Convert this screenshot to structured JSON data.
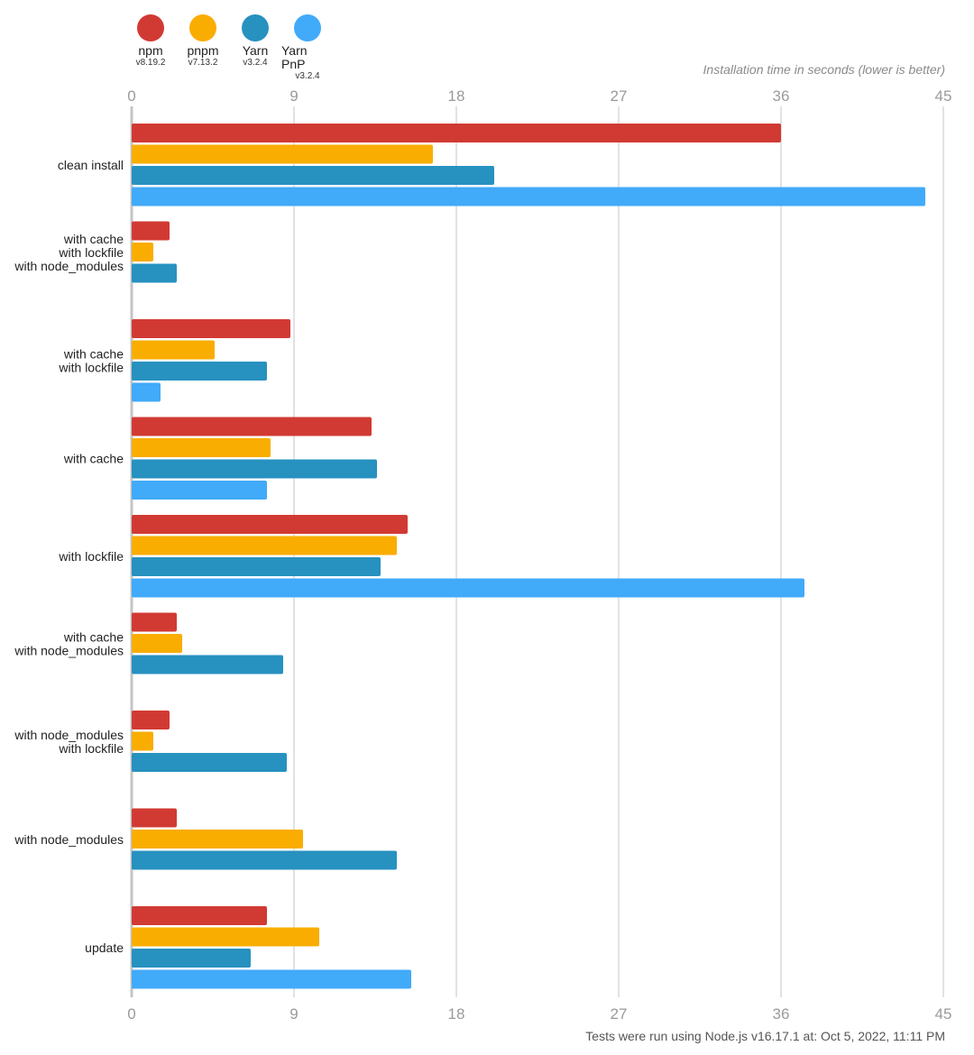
{
  "legend": [
    {
      "name": "npm",
      "version": "v8.19.2",
      "color": "#d13a33"
    },
    {
      "name": "pnpm",
      "version": "v7.13.2",
      "color": "#f9ad00"
    },
    {
      "name": "Yarn",
      "version": "v3.2.4",
      "color": "#2791c0"
    },
    {
      "name": "Yarn PnP",
      "version": "v3.2.4",
      "color": "#41aaf9"
    }
  ],
  "axis_caption": "Installation time in seconds (lower is better)",
  "footer": "Tests were run using Node.js v16.17.1 at: Oct 5, 2022, 11:11 PM",
  "chart_data": {
    "type": "bar",
    "orientation": "horizontal",
    "xlabel": "Installation time in seconds (lower is better)",
    "xlim": [
      0,
      45
    ],
    "xticks": [
      0,
      9,
      18,
      27,
      36,
      45
    ],
    "grid": true,
    "legend_position": "top-left",
    "categories": [
      [
        "clean install"
      ],
      [
        "with cache",
        "with lockfile",
        "with node_modules"
      ],
      [
        "with cache",
        "with lockfile"
      ],
      [
        "with cache"
      ],
      [
        "with lockfile"
      ],
      [
        "with cache",
        "with node_modules"
      ],
      [
        "with node_modules",
        "with lockfile"
      ],
      [
        "with node_modules"
      ],
      [
        "update"
      ]
    ],
    "series": [
      {
        "name": "npm",
        "color": "#d13a33",
        "values": [
          36.0,
          2.1,
          8.8,
          13.3,
          15.3,
          2.5,
          2.1,
          2.5,
          7.5
        ]
      },
      {
        "name": "pnpm",
        "color": "#f9ad00",
        "values": [
          16.7,
          1.2,
          4.6,
          7.7,
          14.7,
          2.8,
          1.2,
          9.5,
          10.4
        ]
      },
      {
        "name": "Yarn",
        "color": "#2791c0",
        "values": [
          20.1,
          2.5,
          7.5,
          13.6,
          13.8,
          8.4,
          8.6,
          14.7,
          6.6
        ]
      },
      {
        "name": "Yarn PnP",
        "color": "#41aaf9",
        "values": [
          44.0,
          null,
          1.6,
          7.5,
          37.3,
          null,
          null,
          null,
          15.5
        ]
      }
    ]
  }
}
